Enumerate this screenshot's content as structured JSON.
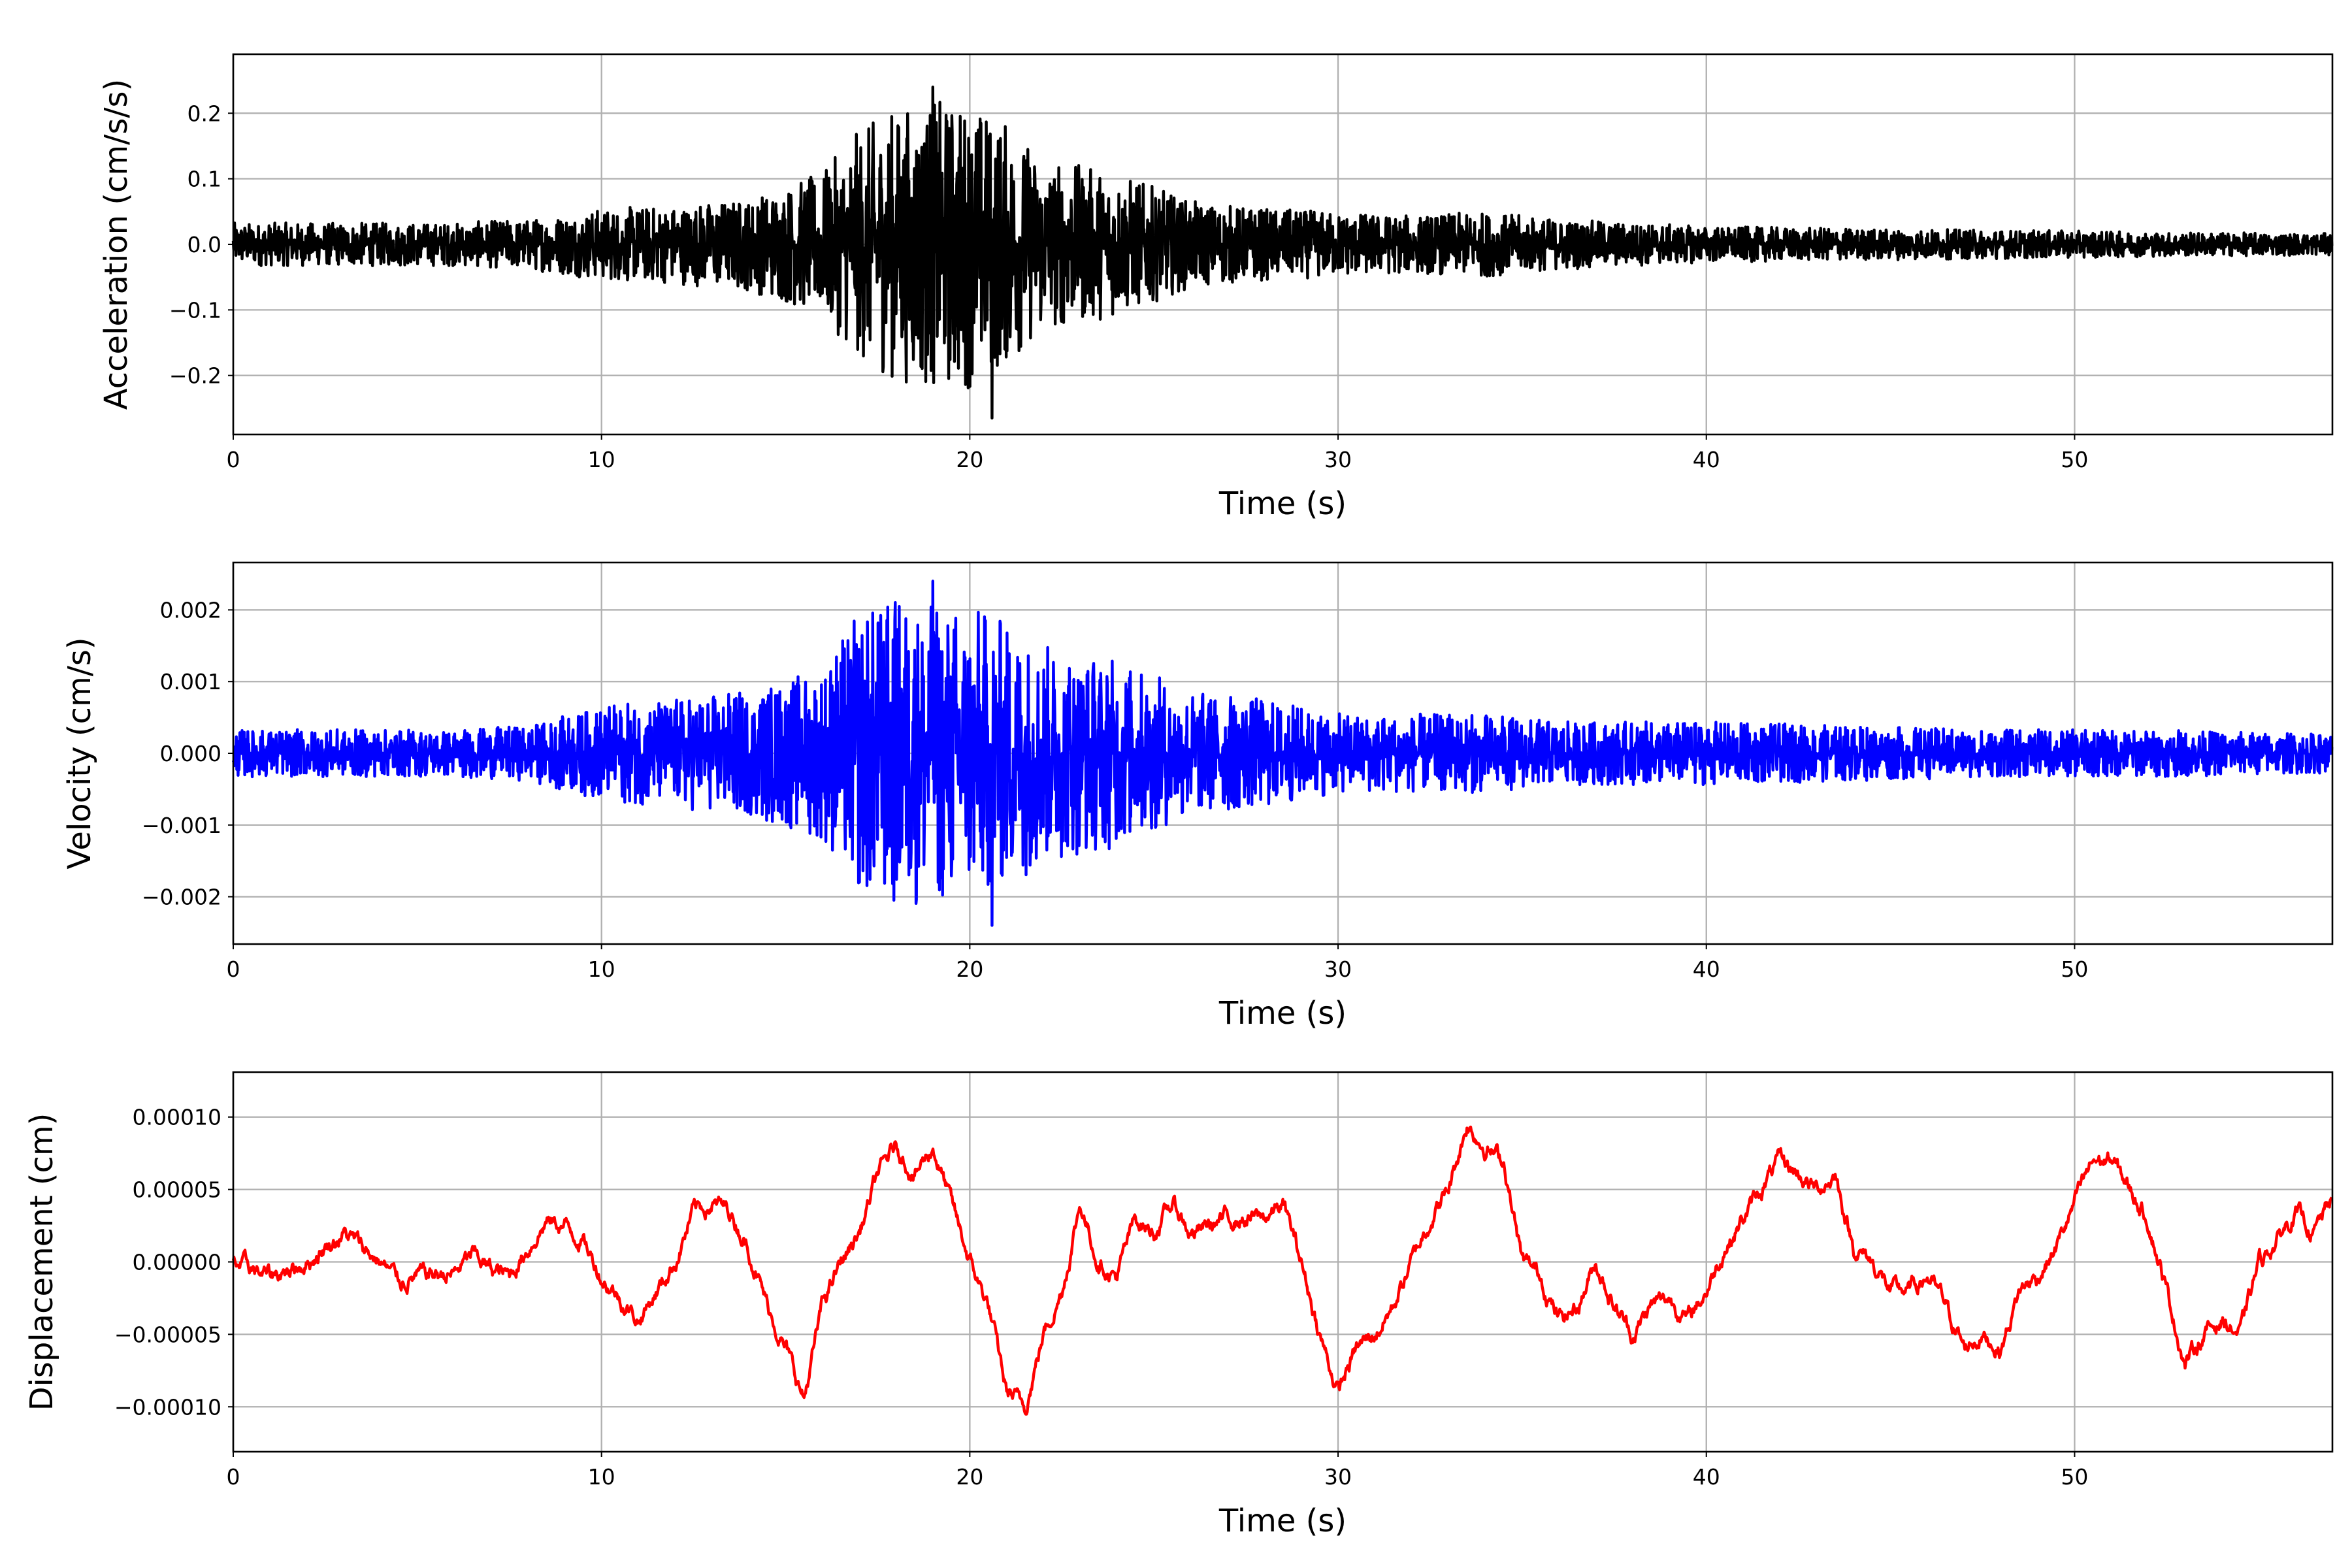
{
  "chart_data": [
    {
      "type": "line",
      "title": "",
      "xlabel": "Time (s)",
      "ylabel": "Acceleration (cm/s/s)",
      "xlim": [
        0,
        57
      ],
      "ylim": [
        -0.29,
        0.29
      ],
      "xticks": [
        0,
        10,
        20,
        30,
        40,
        50
      ],
      "xtick_labels": [
        "0",
        "10",
        "20",
        "30",
        "40",
        "50"
      ],
      "yticks": [
        -0.2,
        -0.1,
        0.0,
        0.1,
        0.2
      ],
      "ytick_labels": [
        "−0.2",
        "−0.1",
        "0.0",
        "0.1",
        "0.2"
      ],
      "grid": true,
      "color": "#000000",
      "series": [
        {
          "name": "acceleration",
          "envelope_t": [
            0,
            2,
            4,
            6,
            8,
            10,
            12,
            14,
            16,
            17,
            18,
            19,
            20,
            21,
            22,
            24,
            26,
            28,
            30,
            32,
            34,
            36,
            38,
            40,
            44,
            48,
            52,
            57
          ],
          "envelope_amp": [
            0.03,
            0.03,
            0.03,
            0.03,
            0.035,
            0.05,
            0.055,
            0.065,
            0.1,
            0.16,
            0.19,
            0.2,
            0.2,
            0.17,
            0.12,
            0.1,
            0.06,
            0.05,
            0.045,
            0.04,
            0.045,
            0.035,
            0.03,
            0.025,
            0.022,
            0.02,
            0.017,
            0.015
          ],
          "peak_max": 0.24,
          "peak_min": -0.265
        }
      ]
    },
    {
      "type": "line",
      "title": "",
      "xlabel": "Time (s)",
      "ylabel": "Velocity (cm/s)",
      "xlim": [
        0,
        57
      ],
      "ylim": [
        -0.00266,
        0.00266
      ],
      "xticks": [
        0,
        10,
        20,
        30,
        40,
        50
      ],
      "xtick_labels": [
        "0",
        "10",
        "20",
        "30",
        "40",
        "50"
      ],
      "yticks": [
        -0.002,
        -0.001,
        0.0,
        0.001,
        0.002
      ],
      "ytick_labels": [
        "−0.002",
        "−0.001",
        "0.000",
        "0.001",
        "0.002"
      ],
      "grid": true,
      "color": "#0000ff",
      "series": [
        {
          "name": "velocity",
          "envelope_t": [
            0,
            2,
            4,
            6,
            8,
            10,
            12,
            14,
            16,
            17,
            18,
            19,
            20,
            21,
            22,
            24,
            26,
            28,
            30,
            32,
            34,
            36,
            38,
            40,
            44,
            48,
            52,
            57
          ],
          "envelope_amp": [
            0.0003,
            0.0003,
            0.0003,
            0.0003,
            0.00035,
            0.0006,
            0.0007,
            0.0008,
            0.0011,
            0.0018,
            0.002,
            0.0019,
            0.0019,
            0.0017,
            0.0014,
            0.0012,
            0.0008,
            0.0007,
            0.0005,
            0.0005,
            0.0005,
            0.0004,
            0.0004,
            0.0004,
            0.00035,
            0.0003,
            0.0003,
            0.00025
          ],
          "peak_max": 0.0024,
          "peak_min": -0.0024
        }
      ]
    },
    {
      "type": "line",
      "title": "",
      "xlabel": "Time (s)",
      "ylabel": "Displacement (cm)",
      "xlim": [
        0,
        57
      ],
      "ylim": [
        -0.000131,
        0.000131
      ],
      "xticks": [
        0,
        10,
        20,
        30,
        40,
        50
      ],
      "xtick_labels": [
        "0",
        "10",
        "20",
        "30",
        "40",
        "50"
      ],
      "yticks": [
        -0.0001,
        -5e-05,
        0.0,
        5e-05,
        0.0001
      ],
      "ytick_labels": [
        "−0.00010",
        "−0.00005",
        "0.00000",
        "0.00005",
        "0.00010"
      ],
      "grid": true,
      "color": "#ff0000",
      "series": [
        {
          "name": "displacement",
          "x": [
            0,
            1,
            2,
            3,
            4,
            4.5,
            5,
            6,
            6.5,
            7,
            7.5,
            8,
            8.5,
            9,
            9.5,
            10,
            11,
            11.5,
            12,
            12.5,
            13,
            13.5,
            14,
            14.5,
            15,
            15.5,
            16,
            16.5,
            17,
            17.5,
            18,
            18.5,
            19,
            19.5,
            20,
            20.5,
            21,
            21.5,
            22,
            22.5,
            23,
            23.5,
            24,
            24.5,
            25,
            25.5,
            26,
            27,
            28,
            28.5,
            29,
            29.5,
            30,
            30.5,
            31,
            31.5,
            32,
            32.5,
            33,
            33.5,
            34,
            34.5,
            35,
            35.5,
            36,
            36.5,
            37,
            37.5,
            38,
            38.5,
            39,
            39.5,
            40,
            40.5,
            41,
            41.5,
            42,
            42.5,
            43,
            43.5,
            44,
            44.5,
            45,
            45.5,
            46,
            46.5,
            47,
            47.5,
            48,
            48.5,
            49,
            49.5,
            50,
            50.5,
            51,
            51.5,
            52,
            52.5,
            53,
            53.5,
            54,
            54.5,
            55,
            55.5,
            56,
            56.5,
            57
          ],
          "y": [
            0,
            -1e-05,
            0,
            2e-05,
            0,
            -1.3e-05,
            -1e-05,
            -8e-06,
            5e-06,
            -5e-06,
            -1e-05,
            1e-05,
            2.8e-05,
            2.5e-05,
            1.5e-05,
            -1e-05,
            -4e-05,
            -2e-05,
            0,
            3.5e-05,
            4e-05,
            3.5e-05,
            1e-05,
            -3e-05,
            -6e-05,
            -9.5e-05,
            -3e-05,
            0,
            2e-05,
            6e-05,
            8e-05,
            6e-05,
            8e-05,
            4e-05,
            0,
            -3e-05,
            -9e-05,
            -0.0001,
            -5e-05,
            -2e-05,
            4e-05,
            0,
            -1e-05,
            3e-05,
            2e-05,
            4e-05,
            2e-05,
            3e-05,
            3e-05,
            4e-05,
            0,
            -5e-05,
            -9e-05,
            -6e-05,
            -5e-05,
            -3e-05,
            0,
            3e-05,
            5e-05,
            9.5e-05,
            8e-05,
            7e-05,
            0,
            -1e-05,
            -4e-05,
            -3e-05,
            0,
            -3e-05,
            -5e-05,
            -3e-05,
            -2.5e-05,
            -4e-05,
            -2e-05,
            1e-05,
            3e-05,
            5e-05,
            7e-05,
            6e-05,
            5e-05,
            6e-05,
            1e-05,
            0,
            -2e-05,
            -2e-05,
            -1e-05,
            -3e-05,
            -6e-05,
            -5e-05,
            -6e-05,
            -2e-05,
            -1e-05,
            1e-05,
            4e-05,
            7e-05,
            7e-05,
            5e-05,
            3e-05,
            -2e-05,
            -7e-05,
            -5e-05,
            -4e-05,
            -5e-05,
            0,
            1.5e-05,
            3.5e-05,
            2e-05,
            4.5e-05
          ]
        }
      ]
    }
  ]
}
